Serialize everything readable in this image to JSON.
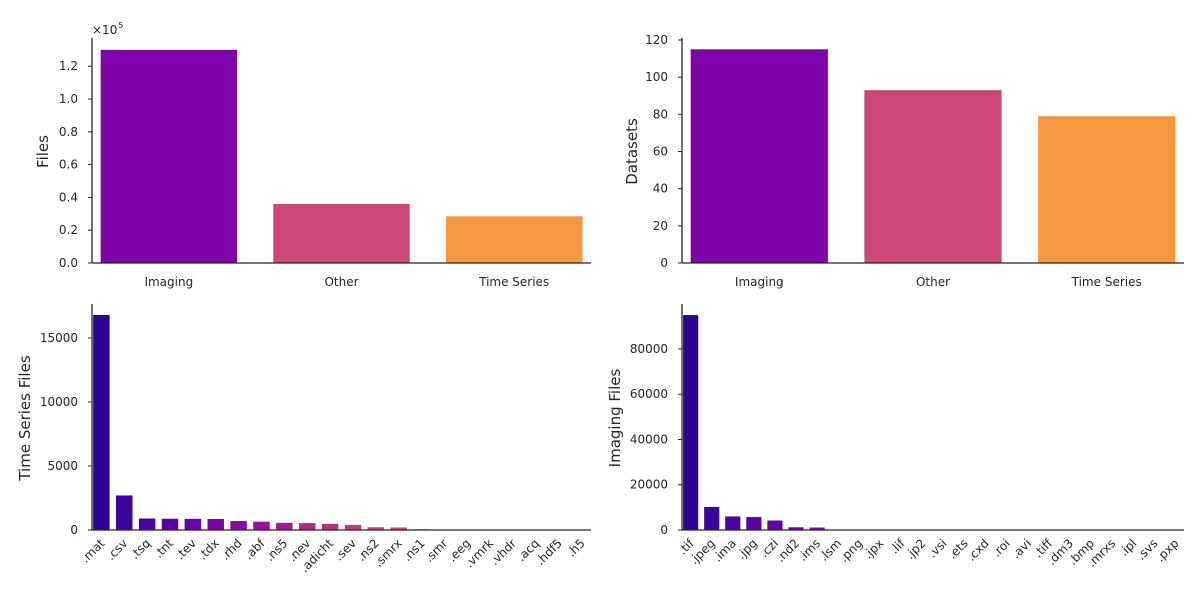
{
  "chart_data": [
    {
      "type": "bar",
      "categories": [
        "Imaging",
        "Other",
        "Time Series"
      ],
      "values": [
        130000,
        36000,
        28500
      ],
      "colors": [
        "#7e03a8",
        "#cc4778",
        "#f89540"
      ],
      "xlabel": "",
      "ylabel": "Files",
      "ylim": [
        0,
        136000
      ],
      "yticks": [
        0,
        20000,
        40000,
        60000,
        80000,
        100000,
        120000
      ],
      "ytick_labels": [
        "0.0",
        "0.2",
        "0.4",
        "0.6",
        "0.8",
        "1.0",
        "1.2"
      ],
      "offset_text": "×10",
      "offset_exp": "5",
      "grid": false
    },
    {
      "type": "bar",
      "categories": [
        "Imaging",
        "Other",
        "Time Series"
      ],
      "values": [
        115,
        93,
        79
      ],
      "colors": [
        "#7e03a8",
        "#cc4778",
        "#f89540"
      ],
      "xlabel": "",
      "ylabel": "Datasets",
      "ylim": [
        0,
        120
      ],
      "yticks": [
        0,
        20,
        40,
        60,
        80,
        100,
        120
      ],
      "ytick_labels": [
        "0",
        "20",
        "40",
        "60",
        "80",
        "100",
        "120"
      ],
      "grid": false
    },
    {
      "type": "bar",
      "categories": [
        ".mat",
        ".csv",
        ".tsq",
        ".tnt",
        ".tev",
        ".tdx",
        ".rhd",
        ".abf",
        ".ns5",
        ".nev",
        ".adicht",
        ".sev",
        ".ns2",
        ".smrx",
        ".ns1",
        ".smr",
        ".eeg",
        ".vmrk",
        ".vhdr",
        ".acq",
        ".hdf5",
        ".h5"
      ],
      "values": [
        16800,
        2700,
        900,
        880,
        870,
        860,
        700,
        650,
        560,
        540,
        480,
        400,
        220,
        200,
        60,
        40,
        30,
        25,
        25,
        20,
        15,
        10
      ],
      "colors": [
        "#2c0594",
        "#3b049a",
        "#4c02a1",
        "#5c01a6",
        "#6a00a8",
        "#7a02a8",
        "#8707a6",
        "#9511a1",
        "#a11b9b",
        "#ae2892",
        "#b6308b",
        "#c03a83",
        "#c8447a",
        "#d14e72",
        "#d8576b",
        "#de6164",
        "#e56b5d",
        "#ea7457",
        "#f07f4f",
        "#f48849",
        "#f79044",
        "#fa9b3d"
      ],
      "xlabel": "",
      "ylabel": "Time Series Files",
      "ylim": [
        0,
        17500
      ],
      "yticks": [
        0,
        5000,
        10000,
        15000
      ],
      "ytick_labels": [
        "0",
        "5000",
        "10000",
        "15000"
      ],
      "grid": false
    },
    {
      "type": "bar",
      "categories": [
        ".tif",
        ".jpeg",
        ".ima",
        ".jpg",
        ".czi",
        ".nd2",
        ".ims",
        ".lsm",
        ".png",
        ".jpx",
        ".lif",
        ".jp2",
        ".vsi",
        ".ets",
        ".cxd",
        ".roi",
        ".avi",
        ".tiff",
        ".dm3",
        ".bmp",
        ".mrxs",
        ".ipl",
        ".svs",
        ".pxp"
      ],
      "values": [
        95000,
        10200,
        6000,
        5700,
        4200,
        1200,
        1100,
        80,
        60,
        50,
        40,
        35,
        30,
        28,
        25,
        20,
        18,
        15,
        12,
        10,
        8,
        6,
        5,
        4
      ],
      "colors": [
        "#2c0594",
        "#3a049a",
        "#4903a0",
        "#5801a4",
        "#6600a7",
        "#7401a8",
        "#8305a7",
        "#900da4",
        "#9c179e",
        "#a62098",
        "#b12a90",
        "#ba3388",
        "#c13b82",
        "#c9457a",
        "#d04d73",
        "#d6556d",
        "#dc5e66",
        "#e16462",
        "#e66c5c",
        "#ec7555",
        "#f07e50",
        "#f3874a",
        "#f79044",
        "#f99a3e"
      ],
      "xlabel": "",
      "ylabel": "Imaging Files",
      "ylim": [
        0,
        99000
      ],
      "yticks": [
        0,
        20000,
        40000,
        60000,
        80000
      ],
      "ytick_labels": [
        "0",
        "20000",
        "40000",
        "60000",
        "80000"
      ],
      "grid": false
    }
  ]
}
